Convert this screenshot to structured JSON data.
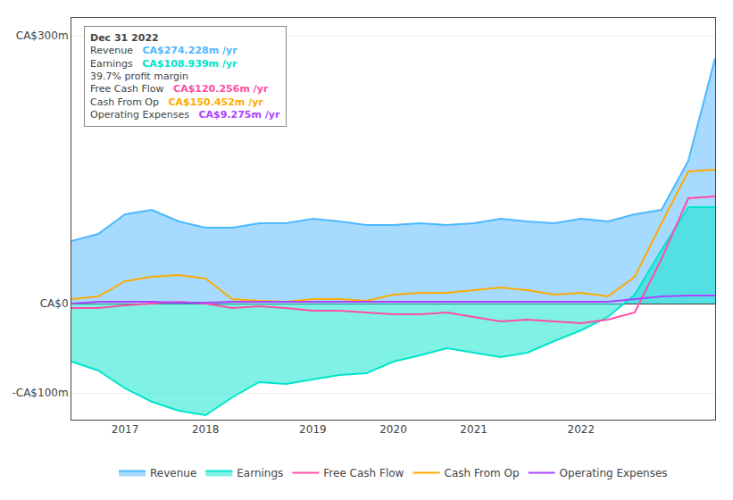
{
  "chart_data": {
    "type": "line",
    "categories": [
      null,
      null,
      "2017",
      null,
      null,
      "2018",
      null,
      null,
      null,
      "2019",
      null,
      null,
      "2020",
      null,
      null,
      "2021",
      null,
      null,
      null,
      "2022",
      null,
      null,
      null,
      null,
      null
    ],
    "series": [
      {
        "name": "Revenue",
        "color": "#4db8ff",
        "type": "area",
        "values": [
          70,
          78,
          100,
          105,
          92,
          85,
          85,
          90,
          90,
          95,
          92,
          88,
          88,
          90,
          88,
          90,
          95,
          92,
          90,
          95,
          92,
          100,
          105,
          160,
          275
        ]
      },
      {
        "name": "Earnings",
        "color": "#00e5cc",
        "type": "area",
        "values": [
          -65,
          -75,
          -95,
          -110,
          -120,
          -125,
          -105,
          -88,
          -90,
          -85,
          -80,
          -78,
          -65,
          -58,
          -50,
          -55,
          -60,
          -55,
          -42,
          -30,
          -15,
          10,
          60,
          108,
          108
        ]
      },
      {
        "name": "Free Cash Flow",
        "color": "#ff4da6",
        "type": "line",
        "values": [
          -5,
          -5,
          -2,
          0,
          2,
          0,
          -5,
          -3,
          -5,
          -8,
          -8,
          -10,
          -12,
          -12,
          -10,
          -15,
          -20,
          -18,
          -20,
          -22,
          -18,
          -10,
          50,
          118,
          120
        ]
      },
      {
        "name": "Cash From Op",
        "color": "#ffaa00",
        "type": "line",
        "values": [
          5,
          8,
          25,
          30,
          32,
          28,
          5,
          3,
          2,
          5,
          5,
          3,
          10,
          12,
          12,
          15,
          18,
          15,
          10,
          12,
          8,
          30,
          90,
          148,
          150
        ]
      },
      {
        "name": "Operating Expenses",
        "color": "#aa44ff",
        "type": "line",
        "values": [
          0,
          2,
          2,
          2,
          1,
          1,
          2,
          2,
          2,
          2,
          2,
          2,
          2,
          2,
          2,
          2,
          2,
          2,
          2,
          2,
          2,
          5,
          8,
          9,
          9
        ]
      }
    ],
    "ylim": [
      -130,
      320
    ],
    "yticks": [
      {
        "value": 300,
        "label": "CA$300m"
      },
      {
        "value": 0,
        "label": "CA$0"
      },
      {
        "value": -100,
        "label": "-CA$100m"
      }
    ],
    "grid": true,
    "annotations": [
      {
        "title": "Dec 31 2022",
        "rows": [
          {
            "label": "Revenue",
            "value": "CA$274.228m /yr",
            "color": "#4db8ff"
          },
          {
            "label": "Earnings",
            "value": "CA$108.939m /yr",
            "color": "#00e5cc"
          },
          {
            "value": "39.7% profit margin"
          },
          {
            "label": "Free Cash Flow",
            "value": "CA$120.256m /yr",
            "color": "#ff4da6"
          },
          {
            "label": "Cash From Op",
            "value": "CA$150.452m /yr",
            "color": "#ffaa00"
          },
          {
            "label": "Operating Expenses",
            "value": "CA$9.275m /yr",
            "color": "#aa44ff"
          }
        ]
      }
    ]
  }
}
